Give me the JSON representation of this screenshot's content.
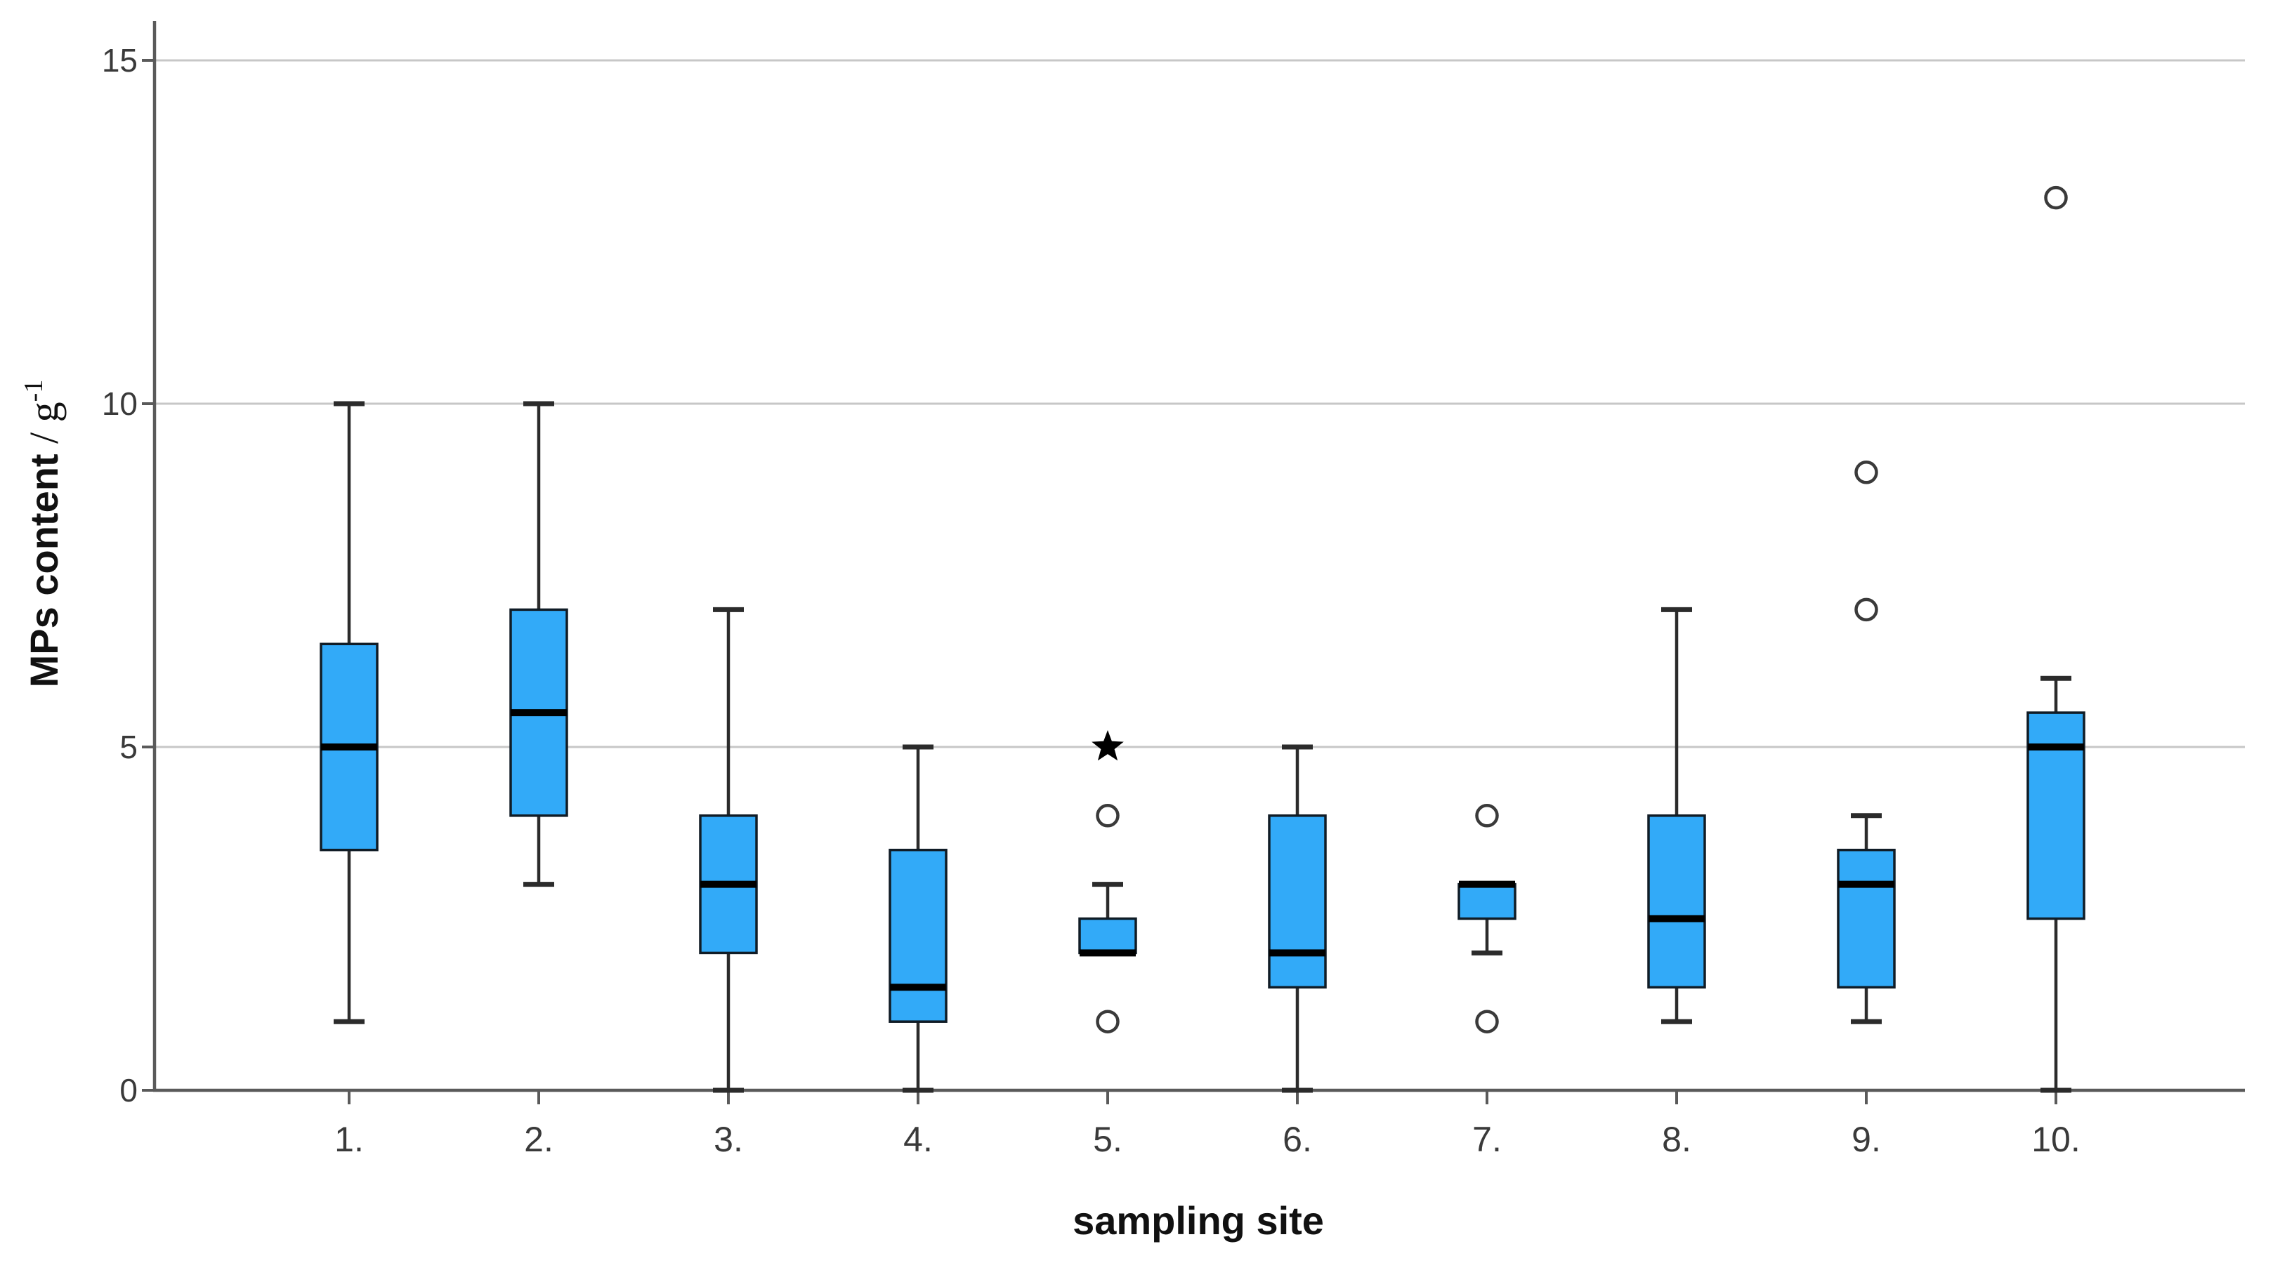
{
  "ui": {
    "y_axis_title_main": "MPs content",
    "y_axis_title_divider": " / ",
    "y_axis_title_unit": "g",
    "y_axis_title_exponent": "-1",
    "x_axis_title": "sampling site"
  },
  "colors": {
    "box_fill": "#32aaf8",
    "box_border": "#101c26",
    "median": "#000000",
    "whisker": "#2b2b2b",
    "gridline": "#c7c7c7",
    "axis": "#5a5a5a",
    "tick_label": "#3a3a3a",
    "outlier": "#3a3a3a",
    "extreme": "#000000",
    "title_text": "#111111"
  },
  "chart_data": {
    "type": "boxplot",
    "title": "",
    "xlabel": "sampling site",
    "ylabel": "MPs content / g^-1",
    "ylim": [
      0,
      15.6
    ],
    "yticks": [
      0,
      5,
      10,
      15
    ],
    "grid_values": [
      5,
      10,
      15
    ],
    "grid": "horizontal-only",
    "legend": "none",
    "categories": [
      "1.",
      "2.",
      "3.",
      "4.",
      "5.",
      "6.",
      "7.",
      "8.",
      "9.",
      "10."
    ],
    "series": [
      {
        "label": "1.",
        "whisker_low": 1,
        "q1": 3.5,
        "median": 5,
        "q3": 6.5,
        "whisker_high": 10,
        "outliers": []
      },
      {
        "label": "2.",
        "whisker_low": 3,
        "q1": 4,
        "median": 5.5,
        "q3": 7,
        "whisker_high": 10,
        "outliers": []
      },
      {
        "label": "3.",
        "whisker_low": 0,
        "q1": 2,
        "median": 3,
        "q3": 4,
        "whisker_high": 7,
        "outliers": []
      },
      {
        "label": "4.",
        "whisker_low": 0,
        "q1": 1,
        "median": 1.5,
        "q3": 3.5,
        "whisker_high": 5,
        "outliers": []
      },
      {
        "label": "5.",
        "whisker_low": null,
        "q1": 2,
        "median": 2,
        "q3": 2.5,
        "whisker_high": 3,
        "outliers": [
          {
            "value": 5,
            "symbol": "star"
          },
          {
            "value": 4,
            "symbol": "circle"
          },
          {
            "value": 1,
            "symbol": "circle"
          }
        ]
      },
      {
        "label": "6.",
        "whisker_low": 0,
        "q1": 1.5,
        "median": 2,
        "q3": 4,
        "whisker_high": 5,
        "outliers": []
      },
      {
        "label": "7.",
        "whisker_low": 2,
        "q1": 2.5,
        "median": 3,
        "q3": 3,
        "whisker_high": null,
        "outliers": [
          {
            "value": 4,
            "symbol": "circle"
          },
          {
            "value": 1,
            "symbol": "circle"
          }
        ]
      },
      {
        "label": "8.",
        "whisker_low": 1,
        "q1": 1.5,
        "median": 2.5,
        "q3": 4,
        "whisker_high": 7,
        "outliers": []
      },
      {
        "label": "9.",
        "whisker_low": 1,
        "q1": 1.5,
        "median": 3,
        "q3": 3.5,
        "whisker_high": 4,
        "outliers": [
          {
            "value": 9,
            "symbol": "circle"
          },
          {
            "value": 7,
            "symbol": "circle"
          }
        ]
      },
      {
        "label": "10.",
        "whisker_low": 0,
        "q1": 2.5,
        "median": 5,
        "q3": 5.5,
        "whisker_high": 6,
        "outliers": [
          {
            "value": 13,
            "symbol": "circle"
          }
        ]
      }
    ]
  }
}
